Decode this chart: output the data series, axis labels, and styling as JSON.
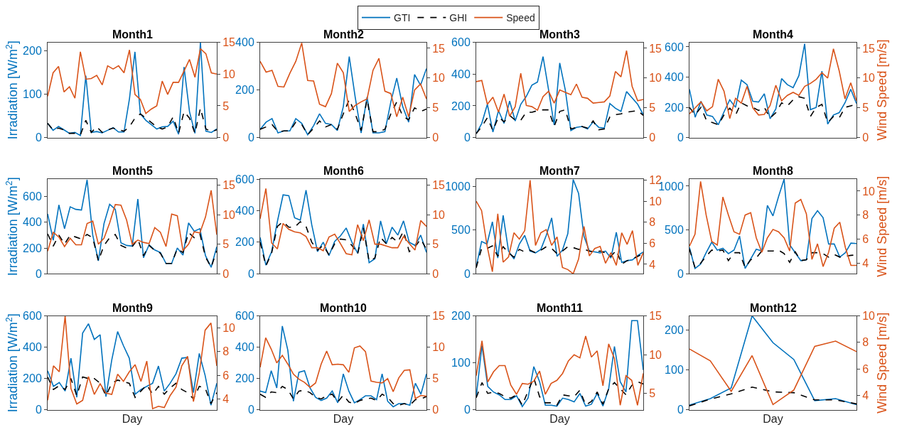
{
  "chart_data": [
    {
      "type": "line",
      "title": "Month1",
      "ylabel": "Irradiation [W/m$^{2}$]",
      "legend": "top",
      "categories": [
        null,
        null,
        null,
        null,
        null,
        null,
        null,
        null,
        null,
        null,
        null,
        null,
        null,
        null,
        null,
        null,
        null,
        null,
        null,
        null,
        null,
        null,
        null,
        null,
        null,
        null,
        null,
        null,
        null,
        null,
        null,
        null
      ],
      "ylim": [
        0,
        220
      ],
      "yticks": [
        0,
        100,
        200
      ],
      "y2lim": [
        0,
        15
      ],
      "y2ticks": [
        0,
        5,
        10,
        15
      ],
      "series": [
        {
          "name": "GTI",
          "color": "#0072bd",
          "line_style": "solid",
          "values": [
            33,
            17,
            26,
            18,
            10,
            12,
            5,
            143,
            12,
            14,
            11,
            17,
            23,
            13,
            13,
            90,
            198,
            55,
            40,
            30,
            20,
            25,
            26,
            38,
            8,
            163,
            60,
            10,
            220,
            15,
            12,
            20
          ]
        },
        {
          "name": "GHI",
          "color": "#000000",
          "line_style": "dashed",
          "values": [
            33,
            18,
            22,
            18,
            10,
            10,
            6,
            40,
            12,
            25,
            12,
            18,
            22,
            18,
            15,
            25,
            45,
            55,
            45,
            35,
            25,
            20,
            25,
            48,
            10,
            60,
            45,
            10,
            68,
            20,
            14,
            18
          ]
        },
        {
          "name": "Speed",
          "color": "#d95319",
          "line_style": "solid",
          "axis": "y2",
          "values": [
            6.5,
            10.2,
            11.2,
            7.2,
            8,
            6.2,
            13.5,
            9.2,
            9.3,
            9.8,
            8.3,
            11.3,
            10.8,
            11.3,
            10.2,
            13.8,
            6.8,
            6,
            3.8,
            4.5,
            5,
            8.9,
            6.8,
            8.7,
            8.7,
            10.5,
            12.3,
            9.5,
            14,
            13.2,
            10.2,
            10
          ]
        }
      ]
    },
    {
      "type": "line",
      "title": "Month2",
      "categories": [
        null,
        null,
        null,
        null,
        null,
        null,
        null,
        null,
        null,
        null,
        null,
        null,
        null,
        null,
        null,
        null,
        null,
        null,
        null,
        null,
        null,
        null,
        null,
        null,
        null,
        null,
        null,
        null,
        null
      ],
      "ylim": [
        0,
        400
      ],
      "yticks": [
        0,
        200,
        400
      ],
      "y2lim": [
        0,
        16
      ],
      "y2ticks": [
        0,
        5,
        10,
        15
      ],
      "series": [
        {
          "color": "#0072bd",
          "line_style": "solid",
          "values": [
            35,
            65,
            80,
            20,
            28,
            28,
            80,
            60,
            12,
            50,
            100,
            60,
            55,
            30,
            130,
            340,
            170,
            20,
            170,
            20,
            20,
            25,
            150,
            250,
            130,
            65,
            265,
            220,
            290
          ]
        },
        {
          "color": "#000000",
          "line_style": "dashed",
          "values": [
            35,
            45,
            55,
            25,
            28,
            28,
            65,
            55,
            12,
            40,
            70,
            45,
            55,
            35,
            100,
            160,
            100,
            30,
            160,
            25,
            25,
            35,
            100,
            150,
            90,
            75,
            125,
            110,
            120
          ]
        },
        {
          "color": "#d95319",
          "line_style": "solid",
          "axis": "y2",
          "values": [
            12.8,
            11,
            11.3,
            8.6,
            8.5,
            10.8,
            12.8,
            15.9,
            9.6,
            9.5,
            5.6,
            5.2,
            7.4,
            12.5,
            10.9,
            4.4,
            5.4,
            6,
            6.5,
            11.3,
            13.3,
            7.8,
            7.4,
            3.5,
            6.8,
            3.5,
            8,
            9,
            6.5
          ]
        }
      ]
    },
    {
      "type": "line",
      "title": "Month3",
      "categories": [
        null,
        null,
        null,
        null,
        null,
        null,
        null,
        null,
        null,
        null,
        null,
        null,
        null,
        null,
        null,
        null,
        null,
        null,
        null,
        null,
        null,
        null,
        null,
        null,
        null,
        null,
        null,
        null,
        null,
        null,
        null
      ],
      "ylim": [
        0,
        600
      ],
      "yticks": [
        0,
        200,
        400,
        600
      ],
      "y2lim": [
        0,
        16
      ],
      "y2ticks": [
        0,
        5,
        10,
        15
      ],
      "series": [
        {
          "color": "#0072bd",
          "line_style": "solid",
          "values": [
            25,
            90,
            210,
            35,
            170,
            90,
            230,
            105,
            210,
            260,
            330,
            350,
            510,
            300,
            80,
            470,
            300,
            45,
            65,
            70,
            55,
            100,
            65,
            60,
            215,
            185,
            165,
            290,
            250,
            210,
            145
          ]
        },
        {
          "color": "#000000",
          "line_style": "dashed",
          "values": [
            25,
            70,
            125,
            45,
            130,
            100,
            140,
            110,
            110,
            160,
            160,
            170,
            175,
            175,
            70,
            165,
            175,
            55,
            65,
            70,
            60,
            105,
            50,
            55,
            130,
            145,
            150,
            160,
            165,
            170,
            140
          ]
        },
        {
          "color": "#d95319",
          "line_style": "solid",
          "axis": "y2",
          "values": [
            9.4,
            9.6,
            5.6,
            6.8,
            4.3,
            7.3,
            3.6,
            5.2,
            10.8,
            5.4,
            5.2,
            4.6,
            6.9,
            7.8,
            5.8,
            8,
            7.6,
            7.2,
            9,
            6.8,
            6.6,
            5.8,
            5.9,
            6,
            7,
            11.1,
            10.2,
            14.6,
            8.6,
            6.2,
            6.4
          ]
        }
      ]
    },
    {
      "type": "line",
      "title": "Month4",
      "y2label": "Wind Speed [m/s]",
      "categories": [
        null,
        null,
        null,
        null,
        null,
        null,
        null,
        null,
        null,
        null,
        null,
        null,
        null,
        null,
        null,
        null,
        null,
        null,
        null,
        null,
        null,
        null,
        null,
        null,
        null,
        null,
        null,
        null,
        null,
        null
      ],
      "ylim": [
        0,
        630
      ],
      "yticks": [
        0,
        200,
        400,
        600
      ],
      "y2lim": [
        0,
        16
      ],
      "y2ticks": [
        0,
        5,
        10,
        15
      ],
      "series": [
        {
          "color": "#0072bd",
          "line_style": "solid",
          "values": [
            320,
            135,
            240,
            150,
            140,
            85,
            170,
            250,
            200,
            380,
            350,
            240,
            235,
            290,
            125,
            190,
            390,
            350,
            330,
            410,
            620,
            185,
            200,
            440,
            90,
            150,
            165,
            230,
            320,
            225
          ]
        },
        {
          "color": "#000000",
          "line_style": "dashed",
          "values": [
            200,
            150,
            200,
            110,
            100,
            85,
            150,
            195,
            150,
            230,
            210,
            200,
            180,
            200,
            130,
            165,
            230,
            210,
            250,
            270,
            260,
            140,
            200,
            220,
            100,
            140,
            130,
            200,
            210,
            220
          ]
        },
        {
          "color": "#d95319",
          "line_style": "solid",
          "axis": "y2",
          "values": [
            4,
            5,
            6,
            4.5,
            5.2,
            9.8,
            7.8,
            3.2,
            6.6,
            5.8,
            8.6,
            5,
            3.8,
            3.9,
            5.4,
            8.8,
            6.2,
            7.1,
            7.6,
            7.1,
            8.6,
            9.1,
            9.8,
            10.9,
            10,
            14.9,
            11.2,
            6.5,
            9.2,
            6.2
          ]
        }
      ]
    },
    {
      "type": "line",
      "title": "Month5",
      "ylabel": "Irradiation [W/m$^{2}$]",
      "categories": [
        null,
        null,
        null,
        null,
        null,
        null,
        null,
        null,
        null,
        null,
        null,
        null,
        null,
        null,
        null,
        null,
        null,
        null,
        null,
        null,
        null,
        null,
        null,
        null,
        null,
        null,
        null,
        null,
        null,
        null,
        null
      ],
      "ylim": [
        0,
        735
      ],
      "yticks": [
        0,
        200,
        400,
        600
      ],
      "y2lim": [
        0,
        16
      ],
      "y2ticks": [
        0,
        5,
        10,
        15
      ],
      "series": [
        {
          "color": "#0072bd",
          "line_style": "solid",
          "values": [
            465,
            260,
            535,
            350,
            520,
            500,
            495,
            730,
            300,
            100,
            390,
            540,
            500,
            240,
            220,
            215,
            580,
            125,
            225,
            185,
            165,
            80,
            80,
            200,
            145,
            395,
            330,
            350,
            140,
            50,
            210
          ]
        },
        {
          "color": "#000000",
          "line_style": "dashed",
          "values": [
            310,
            215,
            300,
            230,
            300,
            285,
            270,
            305,
            280,
            100,
            220,
            280,
            305,
            220,
            200,
            210,
            270,
            140,
            220,
            180,
            160,
            80,
            80,
            195,
            165,
            320,
            280,
            310,
            130,
            50,
            180
          ]
        },
        {
          "color": "#d95319",
          "line_style": "solid",
          "axis": "y2",
          "values": [
            3.8,
            7,
            6.2,
            4.6,
            6,
            4.9,
            4.9,
            8.5,
            8.9,
            5,
            6,
            8.6,
            11.7,
            11.6,
            9.1,
            5,
            5.7,
            5.3,
            5.1,
            7.8,
            7,
            4.6,
            10.1,
            9.8,
            3.9,
            5,
            7.1,
            6.9,
            9.6,
            14.1,
            6.6
          ]
        }
      ]
    },
    {
      "type": "line",
      "title": "Month6",
      "categories": [
        null,
        null,
        null,
        null,
        null,
        null,
        null,
        null,
        null,
        null,
        null,
        null,
        null,
        null,
        null,
        null,
        null,
        null,
        null,
        null,
        null,
        null,
        null,
        null,
        null,
        null,
        null,
        null,
        null,
        null
      ],
      "ylim": [
        0,
        600
      ],
      "yticks": [
        0,
        200,
        400,
        600
      ],
      "y2lim": [
        0,
        16
      ],
      "y2ticks": [
        0,
        5,
        10,
        15
      ],
      "series": [
        {
          "color": "#0072bd",
          "line_style": "solid",
          "values": [
            230,
            55,
            140,
            330,
            500,
            495,
            355,
            340,
            530,
            310,
            140,
            200,
            115,
            205,
            240,
            290,
            200,
            130,
            315,
            70,
            95,
            335,
            190,
            295,
            245,
            335,
            200,
            180,
            245,
            135
          ]
        },
        {
          "color": "#000000",
          "line_style": "dashed",
          "values": [
            200,
            50,
            130,
            300,
            330,
            295,
            295,
            330,
            300,
            200,
            150,
            180,
            120,
            190,
            220,
            215,
            180,
            125,
            290,
            80,
            100,
            230,
            190,
            230,
            200,
            270,
            140,
            170,
            220,
            155
          ]
        },
        {
          "color": "#d95319",
          "line_style": "solid",
          "axis": "y2",
          "values": [
            9.3,
            14.4,
            5.2,
            4.2,
            8.5,
            7.5,
            7.1,
            6.9,
            6.3,
            4.4,
            4.4,
            3.9,
            6.2,
            6.7,
            5.1,
            3.4,
            3.2,
            8.3,
            5.6,
            9.1,
            5,
            5,
            4.7,
            4.4,
            4.4,
            6.3,
            5.1,
            4,
            9,
            8
          ]
        }
      ]
    },
    {
      "type": "line",
      "title": "Month7",
      "categories": [
        null,
        null,
        null,
        null,
        null,
        null,
        null,
        null,
        null,
        null,
        null,
        null,
        null,
        null,
        null,
        null,
        null,
        null,
        null,
        null,
        null,
        null,
        null,
        null,
        null,
        null,
        null,
        null,
        null,
        null,
        null,
        null
      ],
      "ylim": [
        0,
        1085
      ],
      "yticks": [
        0,
        500,
        1000
      ],
      "y2lim": [
        3.1,
        12.1
      ],
      "y2ticks": [
        4,
        6,
        8,
        10,
        12
      ],
      "series": [
        {
          "color": "#0072bd",
          "line_style": "solid",
          "values": [
            80,
            370,
            340,
            595,
            180,
            670,
            260,
            170,
            340,
            440,
            260,
            240,
            280,
            440,
            640,
            200,
            270,
            460,
            1080,
            920,
            430,
            260,
            250,
            240,
            260,
            180,
            475,
            130,
            150,
            160,
            210,
            250
          ]
        },
        {
          "color": "#000000",
          "line_style": "dashed",
          "values": [
            70,
            290,
            290,
            320,
            200,
            310,
            240,
            190,
            280,
            250,
            270,
            240,
            270,
            310,
            290,
            230,
            260,
            310,
            300,
            280,
            280,
            260,
            250,
            260,
            240,
            200,
            270,
            110,
            150,
            170,
            200,
            230
          ]
        },
        {
          "color": "#d95319",
          "line_style": "solid",
          "axis": "y2",
          "values": [
            10,
            9.1,
            5.8,
            3.3,
            8.8,
            4.2,
            4.7,
            7,
            6.4,
            7.2,
            12,
            5.8,
            7,
            7.3,
            5.8,
            6.6,
            3.7,
            3.5,
            3.1,
            4.5,
            7.6,
            4.8,
            5.5,
            5.7,
            4.1,
            5.1,
            3.9,
            7,
            5.9,
            7.2,
            3.9,
            5.1
          ]
        }
      ]
    },
    {
      "type": "line",
      "title": "Month8",
      "y2label": "Wind Speed [m/s]",
      "categories": [
        null,
        null,
        null,
        null,
        null,
        null,
        null,
        null,
        null,
        null,
        null,
        null,
        null,
        null,
        null,
        null,
        null,
        null,
        null,
        null,
        null,
        null,
        null,
        null,
        null,
        null,
        null,
        null,
        null,
        null,
        null
      ],
      "ylim": [
        0,
        1080
      ],
      "yticks": [
        0,
        500,
        1000
      ],
      "y2lim": [
        3.1,
        11
      ],
      "y2ticks": [
        4,
        6,
        8,
        10
      ],
      "series": [
        {
          "color": "#0072bd",
          "line_style": "solid",
          "values": [
            300,
            60,
            110,
            240,
            360,
            270,
            290,
            230,
            270,
            430,
            60,
            170,
            280,
            260,
            780,
            660,
            880,
            1080,
            330,
            240,
            150,
            160,
            630,
            720,
            640,
            340,
            340,
            190,
            240,
            350,
            345
          ]
        },
        {
          "color": "#000000",
          "line_style": "dashed",
          "values": [
            280,
            70,
            120,
            200,
            270,
            260,
            270,
            150,
            240,
            240,
            70,
            160,
            180,
            260,
            260,
            260,
            270,
            230,
            130,
            250,
            150,
            160,
            240,
            240,
            230,
            190,
            220,
            190,
            200,
            210,
            215
          ]
        },
        {
          "color": "#d95319",
          "line_style": "solid",
          "axis": "y2",
          "values": [
            5.4,
            6.4,
            10.8,
            8,
            5.8,
            5.5,
            9.5,
            8,
            6.6,
            6.4,
            8,
            8.2,
            6.1,
            4.9,
            6.1,
            6.8,
            6.6,
            6.1,
            5,
            9,
            9.3,
            8.1,
            4.3,
            5.6,
            3.7,
            4.9,
            6.9,
            7.4,
            5.3,
            3.8,
            3.8
          ]
        }
      ]
    },
    {
      "type": "line",
      "title": "Month9",
      "ylabel": "Irradiation [W/m$^{2}$]",
      "xlabel": "Day",
      "categories": [
        null,
        null,
        null,
        null,
        null,
        null,
        null,
        null,
        null,
        null,
        null,
        null,
        null,
        null,
        null,
        null,
        null,
        null,
        null,
        null,
        null,
        null,
        null,
        null,
        null,
        null,
        null,
        null,
        null,
        null
      ],
      "ylim": [
        0,
        600
      ],
      "yticks": [
        0,
        200,
        400,
        600
      ],
      "y2lim": [
        3.1,
        11
      ],
      "y2ticks": [
        4,
        6,
        8,
        10
      ],
      "series": [
        {
          "color": "#0072bd",
          "line_style": "solid",
          "values": [
            250,
            150,
            175,
            120,
            330,
            80,
            490,
            550,
            450,
            480,
            85,
            320,
            500,
            410,
            330,
            100,
            130,
            150,
            170,
            280,
            120,
            170,
            230,
            330,
            335,
            110,
            360,
            220,
            30,
            170
          ]
        },
        {
          "color": "#000000",
          "line_style": "dashed",
          "values": [
            210,
            130,
            155,
            130,
            200,
            90,
            210,
            200,
            200,
            170,
            90,
            170,
            190,
            180,
            170,
            80,
            120,
            160,
            100,
            150,
            100,
            140,
            170,
            130,
            110,
            70,
            150,
            140,
            40,
            110
          ]
        },
        {
          "color": "#d95319",
          "line_style": "solid",
          "axis": "y2",
          "values": [
            3.9,
            6.8,
            6.3,
            11,
            4.9,
            3.6,
            3.9,
            5.9,
            4.4,
            5.3,
            4.5,
            4.4,
            6.1,
            5.5,
            6.3,
            6.9,
            5.5,
            7.2,
            3.2,
            3.4,
            3.3,
            4.3,
            5,
            6.8,
            7.6,
            3.8,
            6.2,
            9.8,
            10.4,
            6.8
          ]
        }
      ]
    },
    {
      "type": "line",
      "title": "Month10",
      "xlabel": "Day",
      "categories": [
        null,
        null,
        null,
        null,
        null,
        null,
        null,
        null,
        null,
        null,
        null,
        null,
        null,
        null,
        null,
        null,
        null,
        null,
        null,
        null,
        null,
        null,
        null,
        null,
        null,
        null,
        null,
        null,
        null,
        null,
        null
      ],
      "ylim": [
        0,
        600
      ],
      "yticks": [
        0,
        200,
        400,
        600
      ],
      "y2lim": [
        0,
        15
      ],
      "y2ticks": [
        0,
        5,
        10,
        15
      ],
      "series": [
        {
          "color": "#0072bd",
          "line_style": "solid",
          "values": [
            120,
            110,
            250,
            140,
            535,
            380,
            55,
            240,
            250,
            140,
            80,
            60,
            75,
            120,
            45,
            230,
            120,
            45,
            65,
            90,
            90,
            65,
            230,
            55,
            20,
            40,
            40,
            30,
            170,
            100,
            230
          ]
        },
        {
          "color": "#000000",
          "line_style": "dashed",
          "values": [
            100,
            80,
            115,
            110,
            150,
            130,
            70,
            120,
            125,
            110,
            80,
            70,
            90,
            100,
            50,
            95,
            50,
            40,
            60,
            70,
            75,
            60,
            100,
            80,
            40,
            30,
            40,
            30,
            65,
            70,
            85
          ]
        },
        {
          "color": "#d95319",
          "line_style": "solid",
          "axis": "y2",
          "values": [
            6.8,
            11.5,
            9.7,
            7.5,
            8.7,
            7.3,
            5.7,
            4.9,
            4.4,
            3.6,
            4.3,
            7.3,
            9.4,
            7.2,
            7.3,
            7.2,
            6,
            9.9,
            10.2,
            9.3,
            4.6,
            4.4,
            4.3,
            5,
            2.9,
            5.1,
            6.3,
            6.4,
            1.8,
            2.3,
            2.2
          ]
        }
      ]
    },
    {
      "type": "line",
      "title": "Month11",
      "xlabel": "Day",
      "categories": [
        null,
        null,
        null,
        null,
        null,
        null,
        null,
        null,
        null,
        null,
        null,
        null,
        null,
        null,
        null,
        null,
        null,
        null,
        null,
        null,
        null,
        null,
        null,
        null,
        null,
        null,
        null,
        null,
        null,
        null
      ],
      "ylim": [
        0,
        200
      ],
      "yticks": [
        0,
        100,
        200
      ],
      "y2lim": [
        2.9,
        15
      ],
      "y2ticks": [
        5,
        10,
        15
      ],
      "series": [
        {
          "color": "#0072bd",
          "line_style": "solid",
          "values": [
            28,
            137,
            50,
            38,
            32,
            22,
            22,
            30,
            7,
            25,
            92,
            60,
            10,
            10,
            8,
            25,
            22,
            17,
            35,
            8,
            12,
            35,
            8,
            45,
            135,
            60,
            38,
            190,
            190,
            85
          ]
        },
        {
          "color": "#000000",
          "line_style": "dashed",
          "values": [
            26,
            58,
            35,
            38,
            35,
            28,
            25,
            32,
            10,
            40,
            68,
            28,
            15,
            15,
            10,
            32,
            30,
            28,
            42,
            10,
            18,
            38,
            12,
            45,
            58,
            45,
            32,
            52,
            60,
            55
          ]
        },
        {
          "color": "#d95319",
          "line_style": "solid",
          "axis": "y2",
          "values": [
            7.3,
            11.8,
            6.5,
            7.8,
            8.6,
            8.6,
            6.1,
            4.9,
            6.3,
            6.2,
            6.6,
            7.9,
            4.9,
            6.3,
            6.7,
            7.6,
            9.2,
            10,
            9.6,
            12.4,
            9.7,
            10.5,
            6,
            11.4,
            9.5,
            3.5,
            7.3,
            6.7,
            3.5,
            7.6
          ]
        }
      ]
    },
    {
      "type": "line",
      "title": "Month12",
      "xlabel": "Day",
      "y2label": "Wind Speed [m/s]",
      "categories": [
        null,
        null,
        null,
        null,
        null,
        null,
        null,
        null,
        null
      ],
      "ylim": [
        0,
        235
      ],
      "yticks": [
        0,
        100,
        200
      ],
      "y2lim": [
        2.9,
        10
      ],
      "y2ticks": [
        4,
        6,
        8,
        10
      ],
      "series": [
        {
          "color": "#0072bd",
          "line_style": "solid",
          "values": [
            12,
            28,
            55,
            235,
            168,
            126,
            23,
            28,
            13
          ]
        },
        {
          "color": "#000000",
          "line_style": "dashed",
          "values": [
            10,
            27,
            40,
            57,
            45,
            43,
            25,
            25,
            15
          ]
        },
        {
          "color": "#d95319",
          "line_style": "solid",
          "axis": "y2",
          "values": [
            7.5,
            6.6,
            4.3,
            7,
            3.3,
            4.4,
            7.7,
            8.1,
            7.3
          ]
        }
      ]
    }
  ]
}
